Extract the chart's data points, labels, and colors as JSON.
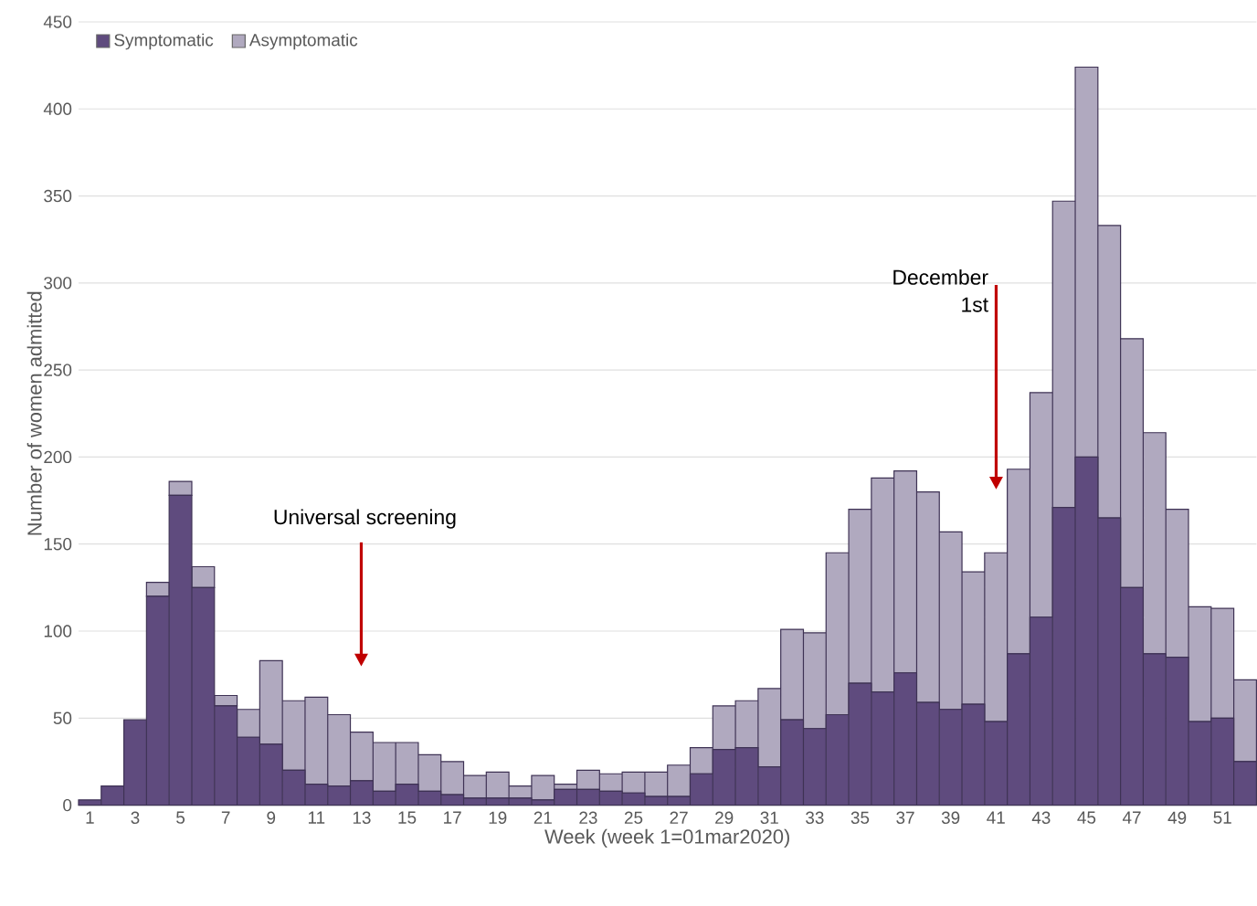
{
  "chart_data": {
    "type": "bar",
    "stacked": true,
    "xlabel": "Week (week 1=01mar2020)",
    "ylabel": "Number of women admitted",
    "categories": [
      "1",
      null,
      "3",
      null,
      "5",
      null,
      "7",
      null,
      "9",
      null,
      "11",
      null,
      "13",
      null,
      "15",
      null,
      "17",
      null,
      "19",
      null,
      "21",
      null,
      "23",
      null,
      "25",
      null,
      "27",
      null,
      "29",
      null,
      "31",
      null,
      "33",
      null,
      "35",
      null,
      "37",
      null,
      "39",
      null,
      "41",
      null,
      "43",
      null,
      "45",
      null,
      "47",
      null,
      "49",
      null,
      "51",
      null
    ],
    "series": [
      {
        "name": "Symptomatic",
        "color": "#5f4b7e",
        "values": [
          3,
          11,
          49,
          120,
          178,
          125,
          57,
          39,
          35,
          20,
          12,
          11,
          14,
          8,
          12,
          8,
          6,
          4,
          4,
          4,
          3,
          9,
          9,
          8,
          7,
          5,
          5,
          18,
          32,
          33,
          22,
          49,
          44,
          52,
          70,
          65,
          76,
          59,
          55,
          58,
          48,
          87,
          108,
          171,
          200,
          165,
          125,
          87,
          85,
          48,
          50,
          25
        ]
      },
      {
        "name": "Asymptomatic",
        "color": "#b0a9bf",
        "values": [
          0,
          0,
          0,
          8,
          8,
          12,
          6,
          16,
          48,
          40,
          50,
          41,
          28,
          28,
          24,
          21,
          19,
          13,
          15,
          7,
          14,
          3,
          11,
          10,
          12,
          14,
          18,
          15,
          25,
          27,
          45,
          52,
          55,
          93,
          100,
          123,
          116,
          121,
          102,
          76,
          97,
          106,
          129,
          176,
          224,
          168,
          143,
          127,
          85,
          66,
          63,
          47
        ]
      }
    ],
    "ylim": [
      0,
      450
    ],
    "yticks": [
      0,
      50,
      100,
      150,
      200,
      250,
      300,
      350,
      400,
      450
    ],
    "grid": "y",
    "legend": "top left",
    "annotations": [
      "Universal screening",
      "December 1st"
    ]
  }
}
